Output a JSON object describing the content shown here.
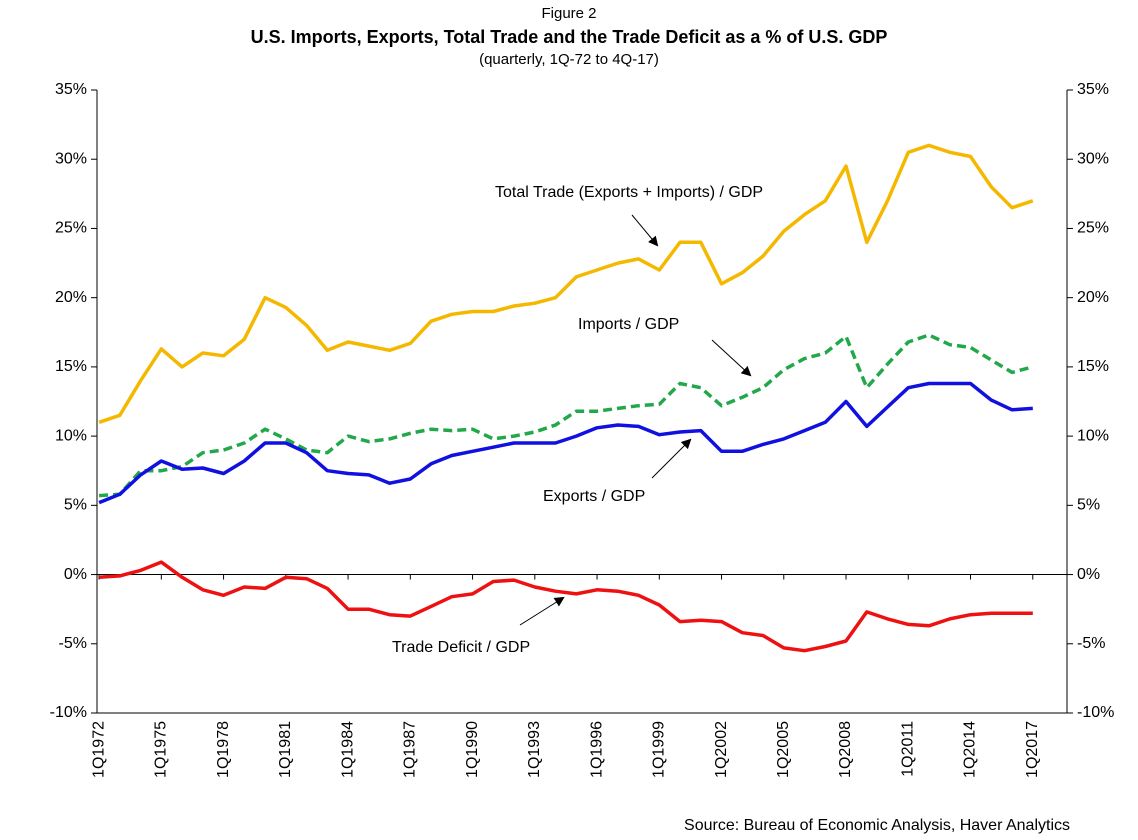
{
  "chart_data": {
    "type": "line",
    "figure_label": "Figure 2",
    "title": "U.S. Imports, Exports, Total Trade and the Trade Deficit as a % of U.S. GDP",
    "subtitle": "(quarterly, 1Q-72 to 4Q-17)",
    "source": "Source: Bureau of Economic Analysis, Haver Analytics",
    "categories": [
      "1Q1972",
      null,
      null,
      "1Q1975",
      null,
      null,
      "1Q1978",
      null,
      null,
      "1Q1981",
      null,
      null,
      "1Q1984",
      null,
      null,
      "1Q1987",
      null,
      null,
      "1Q1990",
      null,
      null,
      "1Q1993",
      null,
      null,
      "1Q1996",
      null,
      null,
      "1Q1999",
      null,
      null,
      "1Q2002",
      null,
      null,
      "1Q2005",
      null,
      null,
      "1Q2008",
      null,
      null,
      "1Q2011",
      null,
      null,
      "1Q2014",
      null,
      null,
      "1Q2017"
    ],
    "series": [
      {
        "name": "Total Trade (Exports + Imports) / GDP",
        "color": "#f5b800",
        "style": "solid",
        "values": [
          11,
          11.5,
          14,
          16.3,
          15,
          16,
          15.8,
          17,
          20,
          19.3,
          18,
          16.2,
          16.8,
          16.5,
          16.2,
          16.7,
          18.3,
          18.8,
          19,
          19,
          19.4,
          19.6,
          20,
          21.5,
          22,
          22.5,
          22.8,
          22,
          24,
          24,
          21,
          21.8,
          23,
          24.8,
          26,
          27,
          29.5,
          24,
          27,
          30.5,
          31,
          30.5,
          30.2,
          28,
          26.5,
          27
        ]
      },
      {
        "name": "Imports / GDP",
        "color": "#22a84a",
        "style": "dashed",
        "values": [
          5.7,
          5.8,
          7.5,
          7.5,
          7.8,
          8.8,
          9,
          9.5,
          10.5,
          9.8,
          9,
          8.8,
          10,
          9.6,
          9.8,
          10.2,
          10.5,
          10.4,
          10.5,
          9.8,
          10,
          10.3,
          10.8,
          11.8,
          11.8,
          12,
          12.2,
          12.3,
          13.8,
          13.5,
          12.2,
          12.8,
          13.5,
          14.8,
          15.6,
          16,
          17.2,
          13.5,
          15.2,
          16.8,
          17.3,
          16.6,
          16.4,
          15.5,
          14.6,
          15
        ]
      },
      {
        "name": "Exports / GDP",
        "color": "#1010e0",
        "style": "solid",
        "values": [
          5.2,
          5.8,
          7.2,
          8.2,
          7.6,
          7.7,
          7.3,
          8.2,
          9.5,
          9.5,
          8.8,
          7.5,
          7.3,
          7.2,
          6.6,
          6.9,
          8,
          8.6,
          8.9,
          9.2,
          9.5,
          9.5,
          9.5,
          10,
          10.6,
          10.8,
          10.7,
          10.1,
          10.3,
          10.4,
          8.9,
          8.9,
          9.4,
          9.8,
          10.4,
          11,
          12.5,
          10.7,
          12.1,
          13.5,
          13.8,
          13.8,
          13.8,
          12.6,
          11.9,
          12
        ]
      },
      {
        "name": "Trade Deficit / GDP",
        "color": "#ee1111",
        "style": "solid",
        "values": [
          -0.2,
          -0.1,
          0.3,
          0.9,
          -0.2,
          -1.1,
          -1.5,
          -0.9,
          -1,
          -0.2,
          -0.3,
          -1,
          -2.5,
          -2.5,
          -2.9,
          -3,
          -2.3,
          -1.6,
          -1.4,
          -0.5,
          -0.4,
          -0.9,
          -1.2,
          -1.4,
          -1.1,
          -1.2,
          -1.5,
          -2.2,
          -3.4,
          -3.3,
          -3.4,
          -4.2,
          -4.4,
          -5.3,
          -5.5,
          -5.2,
          -4.8,
          -2.7,
          -3.2,
          -3.6,
          -3.7,
          -3.2,
          -2.9,
          -2.8,
          -2.8,
          -2.8
        ]
      }
    ],
    "ylim": [
      -10,
      35
    ],
    "yticks": [
      {
        "value": -10,
        "label": "-10%"
      },
      {
        "value": -5,
        "label": "-5%"
      },
      {
        "value": 0,
        "label": "0%"
      },
      {
        "value": 5,
        "label": "5%"
      },
      {
        "value": 10,
        "label": "10%"
      },
      {
        "value": 15,
        "label": "15%"
      },
      {
        "value": 20,
        "label": "20%"
      },
      {
        "value": 25,
        "label": "25%"
      },
      {
        "value": 30,
        "label": "30%"
      },
      {
        "value": 35,
        "label": "35%"
      }
    ],
    "y2lim": [
      -10,
      35
    ],
    "y2ticks": [
      {
        "value": -10,
        "label": "-10%"
      },
      {
        "value": -5,
        "label": "-5%"
      },
      {
        "value": 0,
        "label": "0%"
      },
      {
        "value": 5,
        "label": "5%"
      },
      {
        "value": 10,
        "label": "10%"
      },
      {
        "value": 15,
        "label": "15%"
      },
      {
        "value": 20,
        "label": "20%"
      },
      {
        "value": 25,
        "label": "25%"
      },
      {
        "value": 30,
        "label": "30%"
      },
      {
        "value": 35,
        "label": "35%"
      }
    ],
    "grid": false
  }
}
